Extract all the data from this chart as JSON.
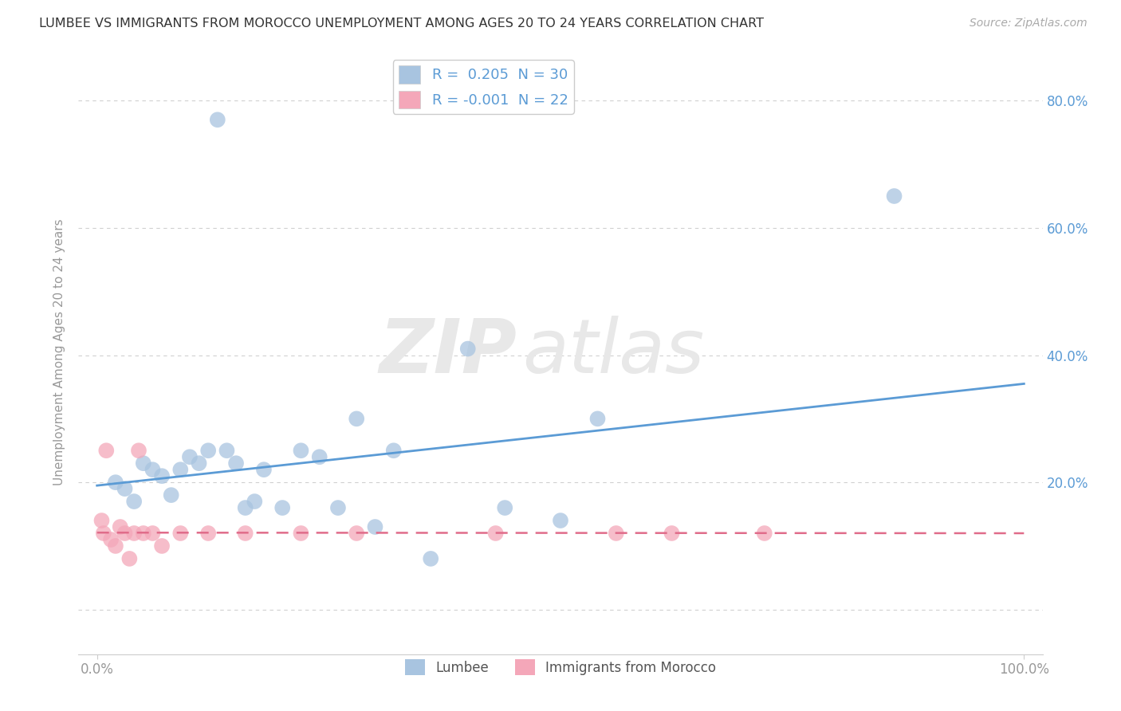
{
  "title": "LUMBEE VS IMMIGRANTS FROM MOROCCO UNEMPLOYMENT AMONG AGES 20 TO 24 YEARS CORRELATION CHART",
  "source": "Source: ZipAtlas.com",
  "ylabel": "Unemployment Among Ages 20 to 24 years",
  "xlim": [
    -0.02,
    1.02
  ],
  "ylim": [
    -0.07,
    0.88
  ],
  "x_ticks": [
    0.0,
    1.0
  ],
  "x_tick_labels": [
    "0.0%",
    "100.0%"
  ],
  "y_ticks": [
    0.0,
    0.2,
    0.4,
    0.6,
    0.8
  ],
  "y_tick_labels": [
    "",
    "",
    "",
    "",
    ""
  ],
  "right_y_ticks": [
    0.2,
    0.4,
    0.6,
    0.8
  ],
  "right_y_tick_labels": [
    "20.0%",
    "40.0%",
    "60.0%",
    "80.0%"
  ],
  "lumbee_R": 0.205,
  "lumbee_N": 30,
  "morocco_R": -0.001,
  "morocco_N": 22,
  "lumbee_color": "#a8c4e0",
  "morocco_color": "#f4a7b9",
  "lumbee_line_color": "#5b9bd5",
  "morocco_line_color": "#e06c8a",
  "watermark_zip": "ZIP",
  "watermark_atlas": "atlas",
  "background_color": "#ffffff",
  "lumbee_scatter_x": [
    0.02,
    0.03,
    0.04,
    0.05,
    0.06,
    0.07,
    0.08,
    0.09,
    0.1,
    0.11,
    0.12,
    0.13,
    0.14,
    0.15,
    0.16,
    0.17,
    0.18,
    0.2,
    0.22,
    0.24,
    0.26,
    0.28,
    0.3,
    0.32,
    0.36,
    0.4,
    0.44,
    0.5,
    0.54,
    0.86
  ],
  "lumbee_scatter_y": [
    0.2,
    0.19,
    0.17,
    0.23,
    0.22,
    0.21,
    0.18,
    0.22,
    0.24,
    0.23,
    0.25,
    0.77,
    0.25,
    0.23,
    0.16,
    0.17,
    0.22,
    0.16,
    0.25,
    0.24,
    0.16,
    0.3,
    0.13,
    0.25,
    0.08,
    0.41,
    0.16,
    0.14,
    0.3,
    0.65
  ],
  "morocco_scatter_x": [
    0.005,
    0.007,
    0.01,
    0.015,
    0.02,
    0.025,
    0.03,
    0.035,
    0.04,
    0.045,
    0.05,
    0.06,
    0.07,
    0.09,
    0.12,
    0.16,
    0.22,
    0.28,
    0.43,
    0.56,
    0.62,
    0.72
  ],
  "morocco_scatter_y": [
    0.14,
    0.12,
    0.25,
    0.11,
    0.1,
    0.13,
    0.12,
    0.08,
    0.12,
    0.25,
    0.12,
    0.12,
    0.1,
    0.12,
    0.12,
    0.12,
    0.12,
    0.12,
    0.12,
    0.12,
    0.12,
    0.12
  ],
  "lumbee_line_x": [
    0.0,
    1.0
  ],
  "lumbee_line_y": [
    0.195,
    0.355
  ],
  "morocco_line_x": [
    0.0,
    1.0
  ],
  "morocco_line_y": [
    0.121,
    0.12
  ],
  "grid_color": "#d0d0d0",
  "tick_color": "#999999",
  "label_color": "#999999",
  "title_color": "#333333",
  "right_label_color": "#5b9bd5"
}
